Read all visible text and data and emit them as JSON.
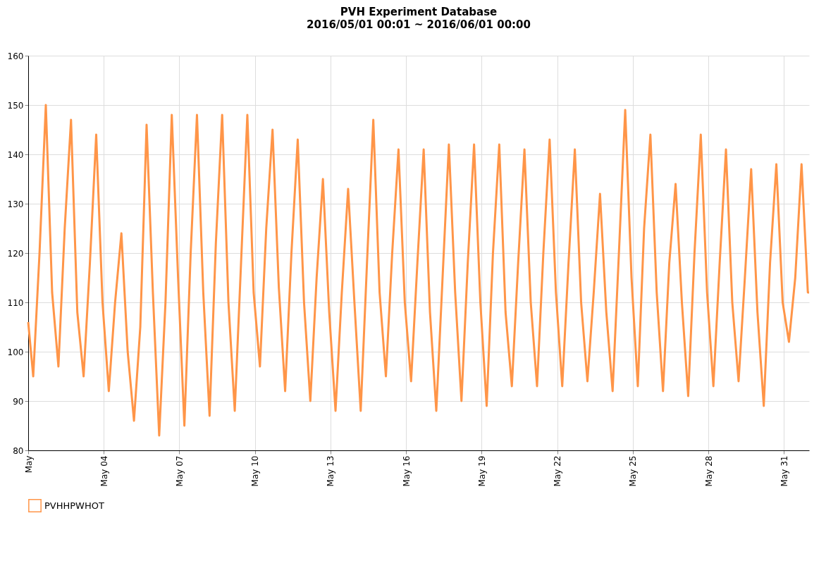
{
  "chart_data": {
    "type": "line",
    "title": "PVH Experiment Database",
    "subtitle": "2016/05/01 00:01 ~ 2016/06/01 00:00",
    "xlim": [
      "2016-05-01T00:00",
      "2016-06-01T00:00"
    ],
    "xticks": [
      {
        "value": "2016-05-01",
        "label": "May"
      },
      {
        "value": "2016-05-04",
        "label": "May 04"
      },
      {
        "value": "2016-05-07",
        "label": "May 07"
      },
      {
        "value": "2016-05-10",
        "label": "May 10"
      },
      {
        "value": "2016-05-13",
        "label": "May 13"
      },
      {
        "value": "2016-05-16",
        "label": "May 16"
      },
      {
        "value": "2016-05-19",
        "label": "May 19"
      },
      {
        "value": "2016-05-22",
        "label": "May 22"
      },
      {
        "value": "2016-05-25",
        "label": "May 25"
      },
      {
        "value": "2016-05-28",
        "label": "May 28"
      },
      {
        "value": "2016-05-31",
        "label": "May 31"
      }
    ],
    "ylim": [
      80,
      160
    ],
    "yticks": [
      80,
      90,
      100,
      110,
      120,
      130,
      140,
      150,
      160
    ],
    "grid": true,
    "legend": "bottom",
    "marker": "none",
    "line_style": "solid",
    "x": [
      "2016-05-01T00:01",
      "2016-05-01T04:48",
      "2016-05-01T10:48",
      "2016-05-01T16:48",
      "2016-05-01T22:48",
      "2016-05-02T04:48",
      "2016-05-02T10:48",
      "2016-05-02T16:48",
      "2016-05-02T22:48",
      "2016-05-03T04:48",
      "2016-05-03T10:48",
      "2016-05-03T16:48",
      "2016-05-03T22:48",
      "2016-05-04T04:48",
      "2016-05-04T10:48",
      "2016-05-04T16:48",
      "2016-05-04T22:48",
      "2016-05-05T04:48",
      "2016-05-05T10:48",
      "2016-05-05T16:48",
      "2016-05-05T22:48",
      "2016-05-06T04:48",
      "2016-05-06T10:48",
      "2016-05-06T16:48",
      "2016-05-06T22:48",
      "2016-05-07T04:48",
      "2016-05-07T10:48",
      "2016-05-07T16:48",
      "2016-05-07T22:48",
      "2016-05-08T04:48",
      "2016-05-08T10:48",
      "2016-05-08T16:48",
      "2016-05-08T22:48",
      "2016-05-09T04:48",
      "2016-05-09T10:48",
      "2016-05-09T16:48",
      "2016-05-09T22:48",
      "2016-05-10T04:48",
      "2016-05-10T10:48",
      "2016-05-10T16:48",
      "2016-05-10T22:48",
      "2016-05-11T04:48",
      "2016-05-11T10:48",
      "2016-05-11T16:48",
      "2016-05-11T22:48",
      "2016-05-12T04:48",
      "2016-05-12T10:48",
      "2016-05-12T16:48",
      "2016-05-12T22:48",
      "2016-05-13T04:48",
      "2016-05-13T10:48",
      "2016-05-13T16:48",
      "2016-05-13T22:48",
      "2016-05-14T04:48",
      "2016-05-14T10:48",
      "2016-05-14T16:48",
      "2016-05-14T22:48",
      "2016-05-15T04:48",
      "2016-05-15T10:48",
      "2016-05-15T16:48",
      "2016-05-15T22:48",
      "2016-05-16T04:48",
      "2016-05-16T10:48",
      "2016-05-16T16:48",
      "2016-05-16T22:48",
      "2016-05-17T04:48",
      "2016-05-17T10:48",
      "2016-05-17T16:48",
      "2016-05-17T22:48",
      "2016-05-18T04:48",
      "2016-05-18T10:48",
      "2016-05-18T16:48",
      "2016-05-18T22:48",
      "2016-05-19T04:48",
      "2016-05-19T10:48",
      "2016-05-19T16:48",
      "2016-05-19T22:48",
      "2016-05-20T04:48",
      "2016-05-20T10:48",
      "2016-05-20T16:48",
      "2016-05-20T22:48",
      "2016-05-21T04:48",
      "2016-05-21T10:48",
      "2016-05-21T16:48",
      "2016-05-21T22:48",
      "2016-05-22T04:48",
      "2016-05-22T10:48",
      "2016-05-22T16:48",
      "2016-05-22T22:48",
      "2016-05-23T04:48",
      "2016-05-23T10:48",
      "2016-05-23T16:48",
      "2016-05-23T22:48",
      "2016-05-24T04:48",
      "2016-05-24T10:48",
      "2016-05-24T16:48",
      "2016-05-24T22:48",
      "2016-05-25T04:48",
      "2016-05-25T10:48",
      "2016-05-25T16:48",
      "2016-05-25T22:48",
      "2016-05-26T04:48",
      "2016-05-26T10:48",
      "2016-05-26T16:48",
      "2016-05-26T22:48",
      "2016-05-27T04:48",
      "2016-05-27T10:48",
      "2016-05-27T16:48",
      "2016-05-27T22:48",
      "2016-05-28T04:48",
      "2016-05-28T10:48",
      "2016-05-28T16:48",
      "2016-05-28T22:48",
      "2016-05-29T04:48",
      "2016-05-29T10:48",
      "2016-05-29T16:48",
      "2016-05-29T22:48",
      "2016-05-30T04:48",
      "2016-05-30T10:48",
      "2016-05-30T16:48",
      "2016-05-30T22:48",
      "2016-05-31T04:48",
      "2016-05-31T10:48",
      "2016-05-31T16:48",
      "2016-05-31T22:48",
      "2016-06-01T00:00"
    ],
    "series": [
      {
        "name": "PVHHPWHOT",
        "color": "#ff9548",
        "values": [
          106,
          95,
          120,
          150,
          112,
          97,
          125,
          147,
          108,
          95,
          118,
          144,
          110,
          92,
          110,
          124,
          100,
          86,
          105,
          146,
          112,
          83,
          110,
          148,
          115,
          85,
          120,
          148,
          112,
          87,
          122,
          148,
          110,
          88,
          118,
          148,
          112,
          97,
          125,
          145,
          113,
          92,
          120,
          143,
          110,
          90,
          115,
          135,
          108,
          88,
          112,
          133,
          110,
          88,
          118,
          147,
          112,
          95,
          120,
          141,
          110,
          94,
          118,
          141,
          108,
          88,
          115,
          142,
          112,
          90,
          118,
          142,
          110,
          89,
          120,
          142,
          108,
          93,
          118,
          141,
          110,
          93,
          120,
          143,
          112,
          93,
          118,
          141,
          110,
          94,
          112,
          132,
          108,
          92,
          120,
          149,
          115,
          93,
          125,
          144,
          112,
          92,
          118,
          134,
          110,
          91,
          120,
          144,
          112,
          93,
          118,
          141,
          110,
          94,
          115,
          137,
          108,
          89,
          118,
          138,
          110,
          102,
          115,
          138,
          112,
          112
        ]
      }
    ]
  }
}
